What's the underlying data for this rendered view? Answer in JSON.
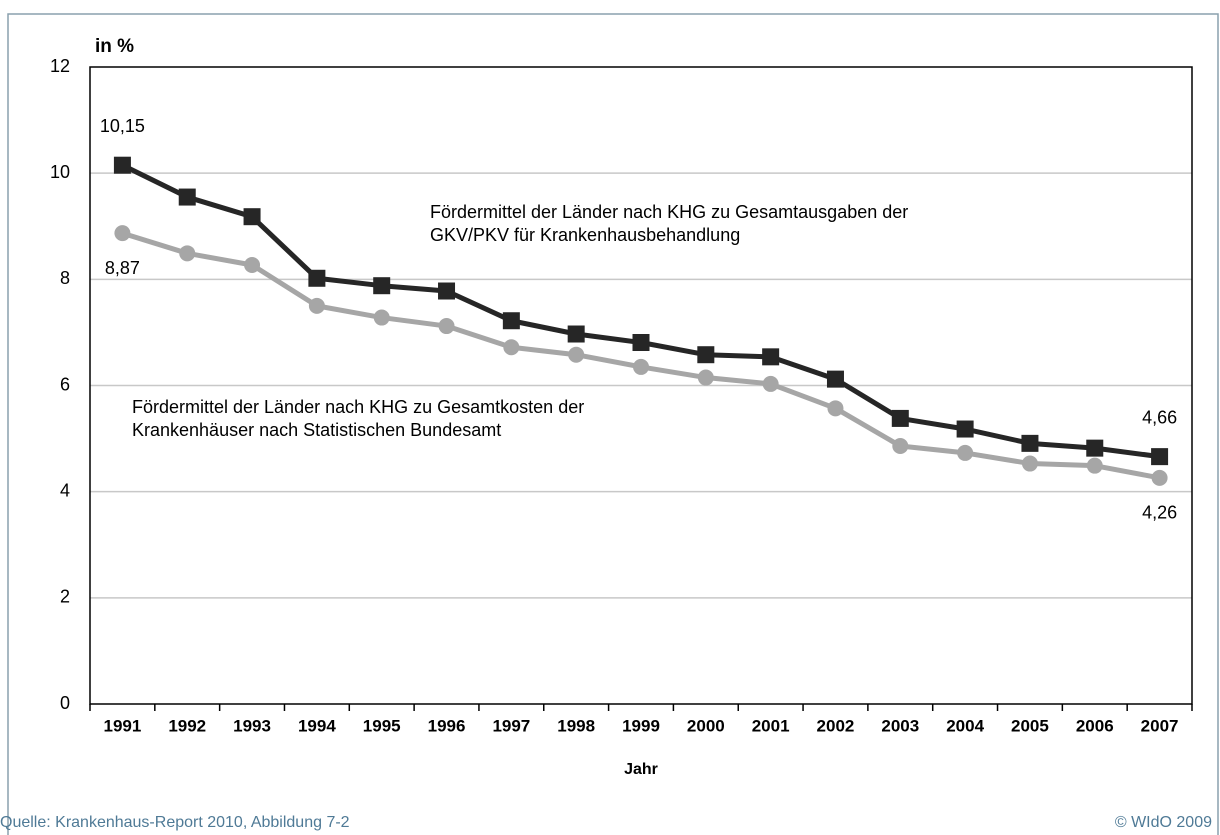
{
  "chart_data": {
    "type": "line",
    "ylabel": "in %",
    "xlabel": "Jahr",
    "source": "Quelle: Krankenhaus-Report 2010, Abbildung 7-2",
    "copyright": "© WIdO 2009",
    "categories": [
      "1991",
      "1992",
      "1993",
      "1994",
      "1995",
      "1996",
      "1997",
      "1998",
      "1999",
      "2000",
      "2001",
      "2002",
      "2003",
      "2004",
      "2005",
      "2006",
      "2007"
    ],
    "series": [
      {
        "name": "Fördermittel der Länder nach KHG zu Gesamtausgaben der\nGKV/PKV für Krankenhausbehandlung",
        "color": "#262626",
        "marker": "square",
        "values": [
          10.15,
          9.55,
          9.18,
          8.02,
          7.88,
          7.78,
          7.22,
          6.97,
          6.81,
          6.58,
          6.54,
          6.12,
          5.38,
          5.18,
          4.91,
          4.82,
          4.66
        ],
        "value_labels": [
          "10,15",
          null,
          null,
          null,
          null,
          null,
          null,
          null,
          null,
          null,
          null,
          null,
          null,
          null,
          null,
          null,
          "4,66"
        ]
      },
      {
        "name": "Fördermittel der Länder nach KHG zu Gesamtkosten der\nKrankenhäuser nach Statistischen Bundesamt",
        "color": "#a6a6a6",
        "marker": "circle",
        "values": [
          8.87,
          8.49,
          8.27,
          7.5,
          7.28,
          7.12,
          6.72,
          6.58,
          6.35,
          6.15,
          6.03,
          5.57,
          4.86,
          4.73,
          4.53,
          4.49,
          4.26
        ],
        "value_labels": [
          "8,87",
          null,
          null,
          null,
          null,
          null,
          null,
          null,
          null,
          null,
          null,
          null,
          null,
          null,
          null,
          null,
          "4,26"
        ]
      }
    ],
    "ylim": [
      0,
      12
    ],
    "yticks": [
      0,
      2,
      4,
      6,
      8,
      10,
      12
    ],
    "grid": true
  }
}
